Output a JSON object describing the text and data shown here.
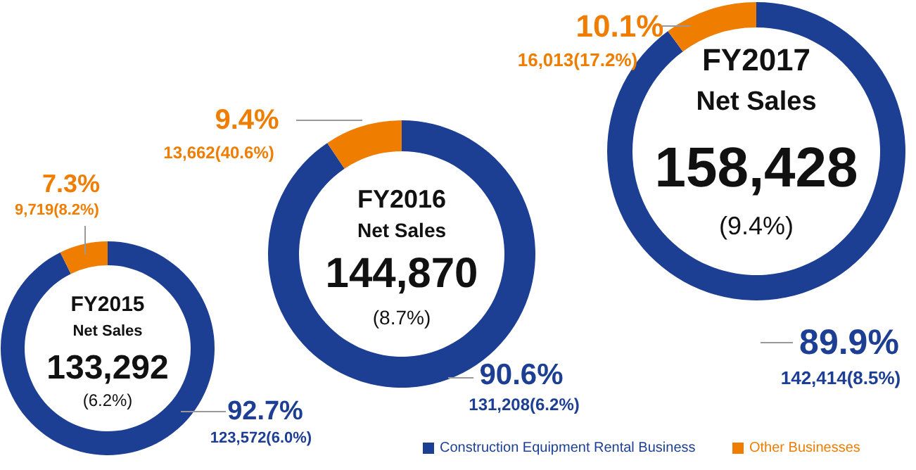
{
  "chart_data": [
    {
      "type": "donut",
      "title": "FY2015",
      "subtitle": "Net Sales",
      "categories": [
        "Construction Equipment Rental Business",
        "Other Businesses"
      ],
      "values": [
        92.7,
        7.3
      ],
      "colors": [
        "#1c3f94",
        "#ee7d00"
      ],
      "value_labels": [
        "92.7%",
        "7.3%"
      ],
      "annotations": [
        "133,292",
        "(6.2%)",
        "123,572(6.0%)",
        "9,719(8.2%)"
      ],
      "legend": "bottom"
    },
    {
      "type": "donut",
      "title": "FY2016",
      "subtitle": "Net Sales",
      "categories": [
        null,
        null
      ],
      "values": [
        90.6,
        9.4
      ],
      "colors": [
        "#1c3f94",
        "#ee7d00"
      ],
      "value_labels": [
        "90.6%",
        "9.4%"
      ],
      "annotations": [
        "144,870",
        "(8.7%)",
        "131,208(6.2%)",
        "13,662(40.6%)"
      ]
    },
    {
      "type": "donut",
      "title": "FY2017",
      "subtitle": "Net Sales",
      "categories": [
        null,
        null
      ],
      "values": [
        89.9,
        10.1
      ],
      "colors": [
        "#1c3f94",
        "#ee7d00"
      ],
      "value_labels": [
        "89.9%",
        "10.1%"
      ],
      "annotations": [
        "158,428",
        "(9.4%)",
        "142,414(8.5%)",
        "16,013(17.2%)"
      ]
    }
  ]
}
